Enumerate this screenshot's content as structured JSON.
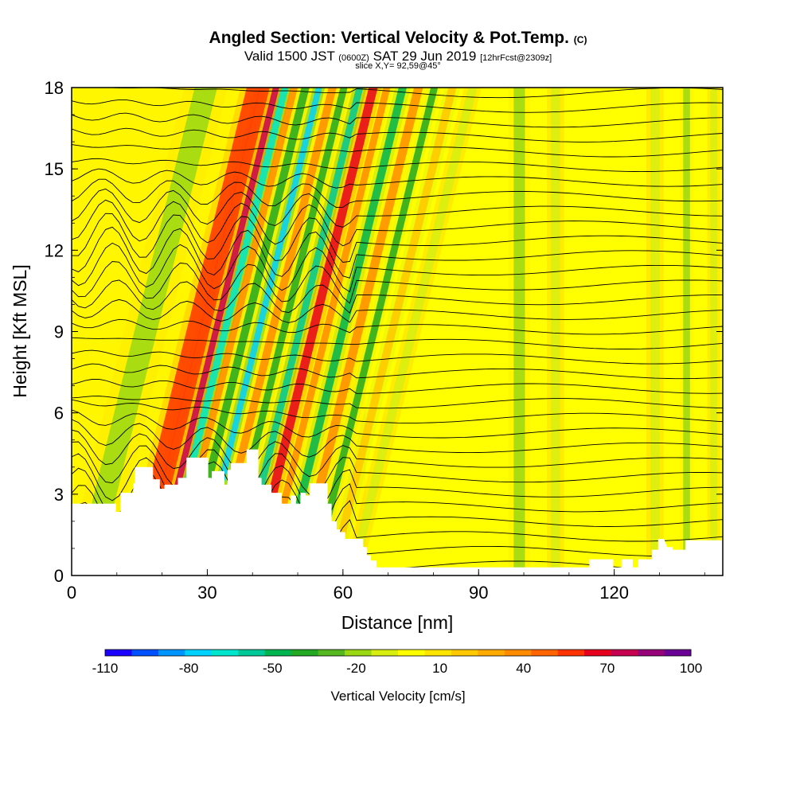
{
  "title": {
    "main": "Angled Section: Vertical Velocity & Pot.Temp.",
    "units_tag": "(C)",
    "valid_pre": "Valid 1500 JST",
    "utc": "(0600Z)",
    "valid_post": "SAT 29 Jun 2019",
    "fcst": "[12hrFcst@2309z]",
    "slice": "slice X,Y= 92,59@45°"
  },
  "chart_data": {
    "type": "heatmap",
    "xlabel": "Distance [nm]",
    "ylabel": "Height [Kft MSL]",
    "xlim": [
      0,
      144
    ],
    "ylim": [
      0,
      18
    ],
    "xticks": [
      0,
      30,
      60,
      90,
      120
    ],
    "yticks": [
      0,
      3,
      6,
      9,
      12,
      15,
      18
    ],
    "colorbar": {
      "label": "Vertical Velocity [cm/s]",
      "tick_labels": [
        "-110",
        "-80",
        "-50",
        "-20",
        "10",
        "40",
        "70",
        "100"
      ],
      "tick_values": [
        -110,
        -80,
        -50,
        -20,
        10,
        40,
        70,
        100
      ],
      "levels": [
        -110,
        -100,
        -90,
        -80,
        -70,
        -60,
        -50,
        -40,
        -30,
        -20,
        -10,
        0,
        10,
        20,
        30,
        40,
        50,
        60,
        70,
        80,
        90,
        100
      ],
      "colors": [
        "#1a00ff",
        "#0050ff",
        "#0094ff",
        "#00d2ff",
        "#00e6cc",
        "#00c896",
        "#00b450",
        "#22a822",
        "#55b820",
        "#9ad814",
        "#d8ee10",
        "#ffff00",
        "#ffe400",
        "#ffc800",
        "#ffaa00",
        "#ff8c00",
        "#ff6400",
        "#ff3200",
        "#e6001e",
        "#c80050",
        "#960078",
        "#6a0096"
      ]
    },
    "vertical_velocity_features": [
      {
        "x": 3,
        "w": 5,
        "value": -20
      },
      {
        "x": 13.5,
        "w": 3,
        "value": 60
      },
      {
        "x": 16,
        "w": 2.2,
        "value": 60
      },
      {
        "x": 18.5,
        "w": 1.4,
        "value": 80
      },
      {
        "x": 20.5,
        "w": 1.6,
        "value": -70
      },
      {
        "x": 22.5,
        "w": 1.6,
        "value": 40
      },
      {
        "x": 25,
        "w": 1.8,
        "value": -40
      },
      {
        "x": 28,
        "w": 1.4,
        "value": -80
      },
      {
        "x": 31,
        "w": 1.8,
        "value": 40
      },
      {
        "x": 33.5,
        "w": 1.6,
        "value": -40
      },
      {
        "x": 37,
        "w": 1.6,
        "value": -60
      },
      {
        "x": 40,
        "w": 2,
        "value": 70
      },
      {
        "x": 43,
        "w": 1.6,
        "value": 40
      },
      {
        "x": 46.5,
        "w": 1.8,
        "value": -50
      },
      {
        "x": 50,
        "w": 2,
        "value": 40
      },
      {
        "x": 53.5,
        "w": 1.6,
        "value": -40
      },
      {
        "x": 57.5,
        "w": 1.8,
        "value": 20
      },
      {
        "x": 62,
        "w": 2,
        "value": -10
      },
      {
        "x": 99,
        "w": 2.5,
        "value": -20
      },
      {
        "x": 107,
        "w": 2,
        "value": -10
      },
      {
        "x": 129,
        "w": 2,
        "value": -10
      },
      {
        "x": 136,
        "w": 1.5,
        "value": -20
      },
      {
        "x": 142,
        "w": 1.5,
        "value": -10
      }
    ],
    "potential_temperature_contours": {
      "count": 34,
      "surface_kft": 0.35,
      "top_kft": 18
    },
    "terrain_kft": [
      {
        "x": 0,
        "h": 2.65
      },
      {
        "x": 9.8,
        "h": 2.65
      },
      {
        "x": 9.8,
        "h": 2.35
      },
      {
        "x": 10.8,
        "h": 2.35
      },
      {
        "x": 10.8,
        "h": 3.05
      },
      {
        "x": 13.6,
        "h": 3.05
      },
      {
        "x": 13.6,
        "h": 3.4
      },
      {
        "x": 14,
        "h": 3.4
      },
      {
        "x": 14,
        "h": 4.0
      },
      {
        "x": 18,
        "h": 4.0
      },
      {
        "x": 18,
        "h": 3.55
      },
      {
        "x": 19.5,
        "h": 3.55
      },
      {
        "x": 19.5,
        "h": 3.2
      },
      {
        "x": 20.5,
        "h": 3.2
      },
      {
        "x": 20.5,
        "h": 3.35
      },
      {
        "x": 23.5,
        "h": 3.35
      },
      {
        "x": 23.5,
        "h": 3.6
      },
      {
        "x": 25.4,
        "h": 3.6
      },
      {
        "x": 25.4,
        "h": 4.35
      },
      {
        "x": 30.2,
        "h": 4.35
      },
      {
        "x": 30.2,
        "h": 3.6
      },
      {
        "x": 31,
        "h": 3.6
      },
      {
        "x": 31,
        "h": 3.85
      },
      {
        "x": 33.8,
        "h": 3.85
      },
      {
        "x": 33.8,
        "h": 3.35
      },
      {
        "x": 34.5,
        "h": 3.35
      },
      {
        "x": 34.5,
        "h": 3.9
      },
      {
        "x": 35.2,
        "h": 3.9
      },
      {
        "x": 35.2,
        "h": 4.15
      },
      {
        "x": 38.7,
        "h": 4.15
      },
      {
        "x": 38.7,
        "h": 4.65
      },
      {
        "x": 41.3,
        "h": 4.65
      },
      {
        "x": 41.3,
        "h": 3.6
      },
      {
        "x": 42,
        "h": 3.6
      },
      {
        "x": 42,
        "h": 3.35
      },
      {
        "x": 44.2,
        "h": 3.35
      },
      {
        "x": 44.2,
        "h": 3.05
      },
      {
        "x": 46.5,
        "h": 3.05
      },
      {
        "x": 46.5,
        "h": 2.65
      },
      {
        "x": 48.4,
        "h": 2.65
      },
      {
        "x": 48.4,
        "h": 2.95
      },
      {
        "x": 49.6,
        "h": 2.95
      },
      {
        "x": 49.6,
        "h": 2.65
      },
      {
        "x": 50.6,
        "h": 2.65
      },
      {
        "x": 50.6,
        "h": 3.05
      },
      {
        "x": 51.8,
        "h": 3.05
      },
      {
        "x": 51.8,
        "h": 2.95
      },
      {
        "x": 52.6,
        "h": 2.95
      },
      {
        "x": 52.6,
        "h": 3.4
      },
      {
        "x": 56.6,
        "h": 3.4
      },
      {
        "x": 56.6,
        "h": 2.65
      },
      {
        "x": 57.5,
        "h": 2.65
      },
      {
        "x": 57.5,
        "h": 2.0
      },
      {
        "x": 58.6,
        "h": 2.0
      },
      {
        "x": 58.6,
        "h": 1.7
      },
      {
        "x": 59.4,
        "h": 1.7
      },
      {
        "x": 59.4,
        "h": 1.6
      },
      {
        "x": 60.5,
        "h": 1.6
      },
      {
        "x": 60.5,
        "h": 1.35
      },
      {
        "x": 64.5,
        "h": 1.35
      },
      {
        "x": 64.5,
        "h": 1.05
      },
      {
        "x": 65.3,
        "h": 1.05
      },
      {
        "x": 65.3,
        "h": 0.75
      },
      {
        "x": 66.2,
        "h": 0.75
      },
      {
        "x": 66.2,
        "h": 0.55
      },
      {
        "x": 67.4,
        "h": 0.55
      },
      {
        "x": 67.4,
        "h": 0.3
      },
      {
        "x": 114.5,
        "h": 0.3
      },
      {
        "x": 114.5,
        "h": 0.6
      },
      {
        "x": 119.8,
        "h": 0.6
      },
      {
        "x": 119.8,
        "h": 0.3
      },
      {
        "x": 121.6,
        "h": 0.3
      },
      {
        "x": 121.6,
        "h": 0.6
      },
      {
        "x": 124.1,
        "h": 0.6
      },
      {
        "x": 124.1,
        "h": 0.3
      },
      {
        "x": 125.3,
        "h": 0.3
      },
      {
        "x": 125.3,
        "h": 0.6
      },
      {
        "x": 128.3,
        "h": 0.6
      },
      {
        "x": 128.3,
        "h": 0.95
      },
      {
        "x": 129.7,
        "h": 0.95
      },
      {
        "x": 129.7,
        "h": 1.35
      },
      {
        "x": 131,
        "h": 1.35
      },
      {
        "x": 131.7,
        "h": 1.05
      },
      {
        "x": 132.9,
        "h": 1.05
      },
      {
        "x": 132.9,
        "h": 0.95
      },
      {
        "x": 135.7,
        "h": 0.95
      },
      {
        "x": 135.7,
        "h": 1.3
      },
      {
        "x": 144,
        "h": 1.3
      }
    ]
  }
}
